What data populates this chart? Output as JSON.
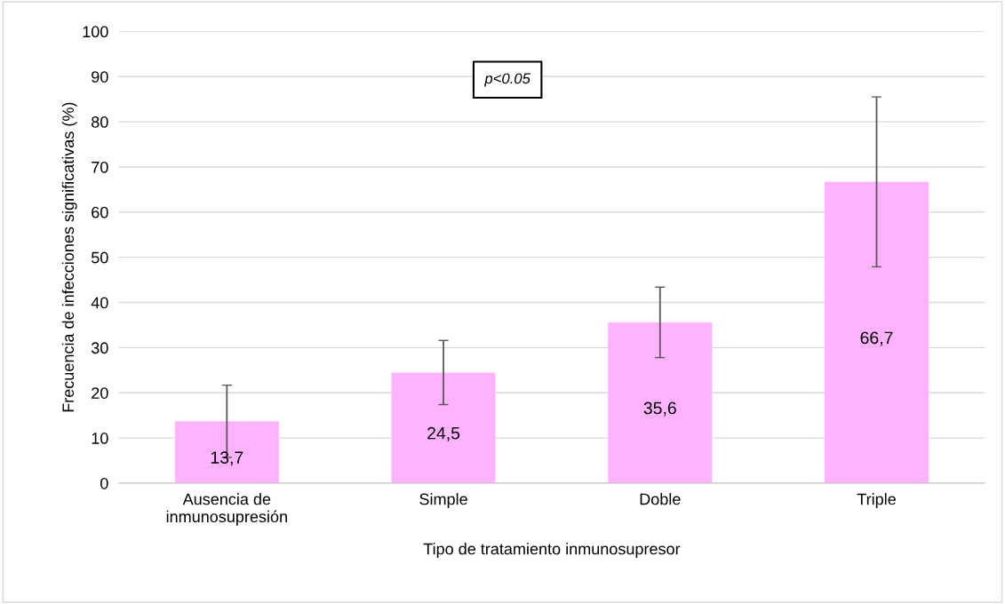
{
  "chart_data": {
    "type": "bar",
    "xlabel": "Tipo de tratamiento inmunosupresor",
    "ylabel": "Frecuencia de infecciones significativas (%)",
    "categories": [
      "Ausencia de\ninmunosupresión",
      "Simple",
      "Doble",
      "Triple"
    ],
    "values": [
      13.7,
      24.5,
      35.6,
      66.7
    ],
    "errors": [
      8,
      7.1,
      7.8,
      18.8
    ],
    "value_labels": [
      "13,7",
      "24,5",
      "35,6",
      "66,7"
    ],
    "color": "#ffb3ff",
    "ylim": [
      0,
      100
    ],
    "yticks": [
      0,
      10,
      20,
      30,
      40,
      50,
      60,
      70,
      80,
      90,
      100
    ],
    "grid": "y",
    "annotations": [
      "p<0.05"
    ]
  }
}
